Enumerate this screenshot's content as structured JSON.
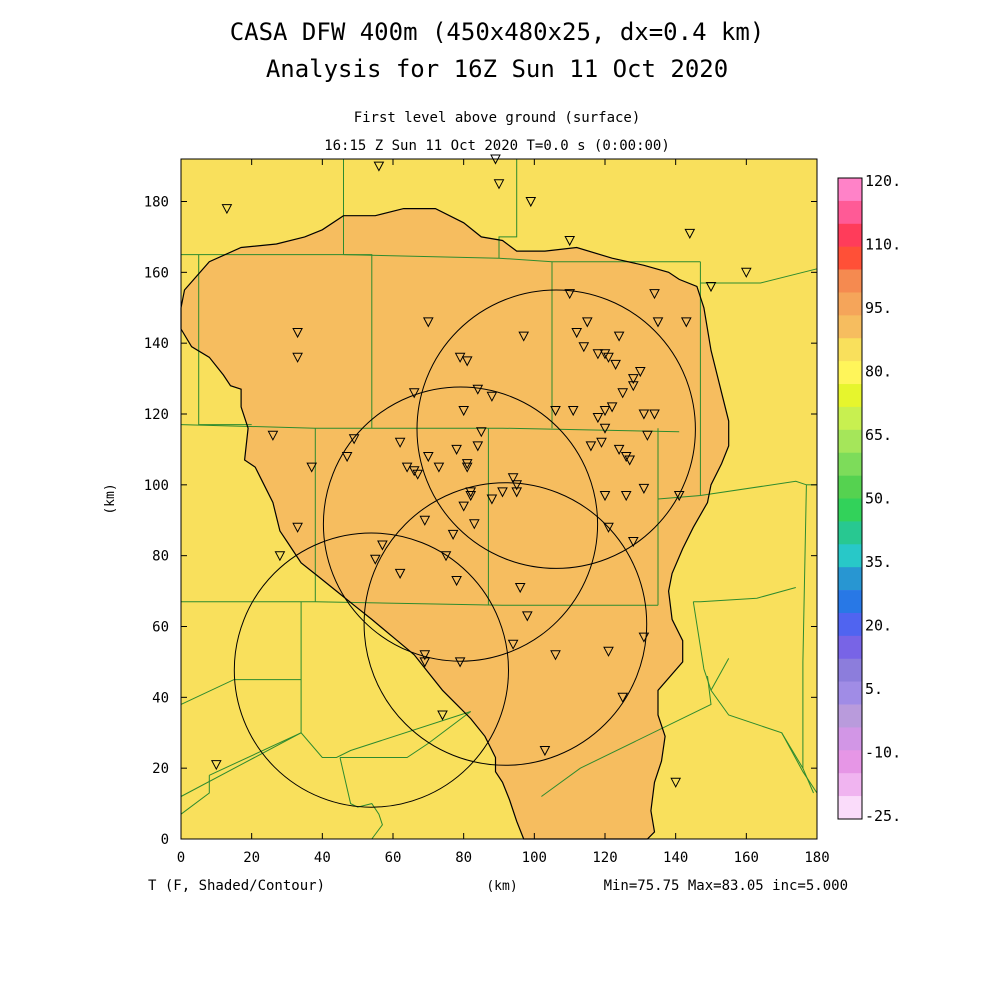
{
  "title": "CASA DFW 400m (450x480x25, dx=0.4 km)",
  "subtitle": "Analysis for 16Z Sun 11 Oct 2020",
  "level_label": "First level above ground (surface)",
  "time_label": "16:15 Z Sun 11 Oct 2020    T=0.0 s (0:00:00)",
  "field_label": "T (F, Shaded/Contour)",
  "stats_label": "Min=75.75 Max=83.05 inc=5.000",
  "colors": {
    "background_fill": "#f9e05c",
    "shaded_fill": "#f6bd5f",
    "county_lines": "#2e8b2e",
    "contour": "#000000"
  },
  "chart_data": {
    "type": "heatmap",
    "xlabel": "(km)",
    "ylabel": "(km)",
    "xlim": [
      0,
      180
    ],
    "ylim": [
      0,
      192
    ],
    "x_ticks": [
      "0",
      "20",
      "40",
      "60",
      "80",
      "100",
      "120",
      "140",
      "160",
      "180"
    ],
    "y_ticks": [
      "0",
      "20",
      "40",
      "60",
      "80",
      "100",
      "120",
      "140",
      "160",
      "180"
    ],
    "colorbar": {
      "labels": [
        "120.",
        "110.",
        "95.",
        "80.",
        "65.",
        "50.",
        "35.",
        "20.",
        "5.",
        "-10.",
        "-25."
      ],
      "colors": [
        "#ff82c8",
        "#ff5a96",
        "#ff3c5a",
        "#ff5037",
        "#f58a50",
        "#f5a55a",
        "#f6bd5f",
        "#f9e05c",
        "#fff55a",
        "#e6f52d",
        "#c8f050",
        "#a5e65a",
        "#7ddc5a",
        "#55d250",
        "#32d25a",
        "#28c891",
        "#28c8c8",
        "#2896d2",
        "#2878e6",
        "#5064f0",
        "#7864e6",
        "#8c7ddc",
        "#a08ce6",
        "#b99bdc",
        "#d296e6",
        "#e696e6",
        "#f0b4f0",
        "#fadcfa"
      ]
    },
    "contour_80F_outline_km": [
      [
        0,
        144
      ],
      [
        3,
        139
      ],
      [
        8,
        136
      ],
      [
        12,
        131
      ],
      [
        14,
        128
      ],
      [
        17,
        127
      ],
      [
        17,
        122
      ],
      [
        19,
        116
      ],
      [
        18,
        107
      ],
      [
        21,
        105
      ],
      [
        23,
        101
      ],
      [
        26,
        95
      ],
      [
        28,
        87
      ],
      [
        30,
        84
      ],
      [
        34,
        78
      ],
      [
        39,
        74
      ],
      [
        44,
        70
      ],
      [
        49,
        66
      ],
      [
        54,
        62
      ],
      [
        60,
        57
      ],
      [
        66,
        52
      ],
      [
        70,
        47
      ],
      [
        74,
        42
      ],
      [
        78,
        38
      ],
      [
        82,
        34
      ],
      [
        86,
        29
      ],
      [
        89,
        23
      ],
      [
        89,
        19
      ],
      [
        91,
        16
      ],
      [
        93,
        11
      ],
      [
        95,
        5
      ],
      [
        97,
        0
      ],
      [
        115,
        0
      ],
      [
        125,
        0
      ],
      [
        132,
        0
      ],
      [
        134,
        2
      ],
      [
        133,
        8
      ],
      [
        134,
        16
      ],
      [
        136,
        22
      ],
      [
        137,
        29
      ],
      [
        135,
        35
      ],
      [
        135,
        42
      ],
      [
        142,
        50
      ],
      [
        142,
        56
      ],
      [
        139,
        62
      ],
      [
        138,
        70
      ],
      [
        139,
        75
      ],
      [
        142,
        82
      ],
      [
        145,
        88
      ],
      [
        149,
        95
      ],
      [
        150,
        100
      ],
      [
        153,
        106
      ],
      [
        155,
        111
      ],
      [
        155,
        118
      ],
      [
        153,
        126
      ],
      [
        150,
        138
      ],
      [
        148,
        150
      ],
      [
        146,
        156
      ],
      [
        141,
        158
      ],
      [
        138,
        160
      ],
      [
        131,
        162
      ],
      [
        122,
        164
      ],
      [
        112,
        167
      ],
      [
        103,
        166
      ],
      [
        95,
        166
      ],
      [
        91,
        169
      ],
      [
        85,
        170
      ],
      [
        80,
        174
      ],
      [
        72,
        178
      ],
      [
        63,
        178
      ],
      [
        55,
        176
      ],
      [
        46,
        176
      ],
      [
        40,
        172
      ],
      [
        35,
        170
      ],
      [
        27,
        168
      ],
      [
        17,
        167
      ],
      [
        8,
        163
      ],
      [
        1,
        155
      ],
      [
        0,
        150
      ]
    ],
    "radar_rings_km": [
      {
        "cx": 106.2,
        "cy": 115.7,
        "r": 39.4
      },
      {
        "cx": 79.1,
        "cy": 88.9,
        "r": 38.8
      },
      {
        "cx": 91.8,
        "cy": 60.7,
        "r": 40.0
      },
      {
        "cx": 53.9,
        "cy": 47.7,
        "r": 38.8
      }
    ],
    "stations_km": [
      [
        13,
        178
      ],
      [
        56,
        190
      ],
      [
        89,
        192
      ],
      [
        90,
        185
      ],
      [
        99,
        180
      ],
      [
        110,
        169
      ],
      [
        144,
        171
      ],
      [
        160,
        160
      ],
      [
        150,
        156
      ],
      [
        134,
        154
      ],
      [
        110,
        154
      ],
      [
        115,
        146
      ],
      [
        135,
        146
      ],
      [
        143,
        146
      ],
      [
        70,
        146
      ],
      [
        33,
        143
      ],
      [
        112,
        143
      ],
      [
        97,
        142
      ],
      [
        124,
        142
      ],
      [
        33,
        136
      ],
      [
        79,
        136
      ],
      [
        81,
        135
      ],
      [
        118,
        137
      ],
      [
        121,
        136
      ],
      [
        123,
        134
      ],
      [
        114,
        139
      ],
      [
        120,
        137
      ],
      [
        128,
        130
      ],
      [
        130,
        132
      ],
      [
        84,
        127
      ],
      [
        66,
        126
      ],
      [
        88,
        125
      ],
      [
        125,
        126
      ],
      [
        128,
        128
      ],
      [
        80,
        121
      ],
      [
        106,
        121
      ],
      [
        111,
        121
      ],
      [
        120,
        121
      ],
      [
        122,
        122
      ],
      [
        131,
        120
      ],
      [
        134,
        120
      ],
      [
        118,
        119
      ],
      [
        120,
        116
      ],
      [
        132,
        114
      ],
      [
        85,
        115
      ],
      [
        26,
        114
      ],
      [
        49,
        113
      ],
      [
        62,
        112
      ],
      [
        78,
        110
      ],
      [
        84,
        111
      ],
      [
        119,
        112
      ],
      [
        116,
        111
      ],
      [
        124,
        110
      ],
      [
        126,
        108
      ],
      [
        127,
        107
      ],
      [
        70,
        108
      ],
      [
        47,
        108
      ],
      [
        37,
        105
      ],
      [
        64,
        105
      ],
      [
        66,
        104
      ],
      [
        67,
        103
      ],
      [
        73,
        105
      ],
      [
        81,
        105
      ],
      [
        81,
        106
      ],
      [
        94,
        102
      ],
      [
        95,
        100
      ],
      [
        95,
        98
      ],
      [
        120,
        97
      ],
      [
        126,
        97
      ],
      [
        131,
        99
      ],
      [
        141,
        97
      ],
      [
        82,
        97
      ],
      [
        82,
        98
      ],
      [
        91,
        98
      ],
      [
        88,
        96
      ],
      [
        80,
        94
      ],
      [
        33,
        88
      ],
      [
        69,
        90
      ],
      [
        83,
        89
      ],
      [
        121,
        88
      ],
      [
        128,
        84
      ],
      [
        77,
        86
      ],
      [
        57,
        83
      ],
      [
        75,
        80
      ],
      [
        55,
        79
      ],
      [
        28,
        80
      ],
      [
        62,
        75
      ],
      [
        78,
        73
      ],
      [
        96,
        71
      ],
      [
        98,
        63
      ],
      [
        131,
        57
      ],
      [
        94,
        55
      ],
      [
        69,
        52
      ],
      [
        69,
        50
      ],
      [
        79,
        50
      ],
      [
        106,
        52
      ],
      [
        121,
        53
      ],
      [
        125,
        40
      ],
      [
        74,
        35
      ],
      [
        103,
        25
      ],
      [
        10,
        21
      ],
      [
        140,
        16
      ]
    ],
    "county_boundaries_km": [
      [
        [
          0,
          165
        ],
        [
          46,
          165
        ],
        [
          90,
          164
        ],
        [
          105,
          163
        ],
        [
          147,
          163
        ]
      ],
      [
        [
          5,
          165
        ],
        [
          5,
          117
        ],
        [
          20,
          117
        ]
      ],
      [
        [
          0,
          117
        ],
        [
          38,
          116
        ],
        [
          91,
          116
        ],
        [
          141,
          115
        ]
      ],
      [
        [
          46,
          165
        ],
        [
          54,
          165
        ],
        [
          54,
          127
        ],
        [
          54,
          116
        ]
      ],
      [
        [
          105,
          163
        ],
        [
          105,
          116
        ]
      ],
      [
        [
          147,
          163
        ],
        [
          147,
          157
        ],
        [
          164,
          157
        ],
        [
          180,
          161
        ]
      ],
      [
        [
          147,
          157
        ],
        [
          147,
          116
        ],
        [
          147,
          97
        ],
        [
          135,
          96
        ]
      ],
      [
        [
          90,
          164
        ],
        [
          90,
          170
        ],
        [
          95,
          170
        ],
        [
          95,
          192
        ]
      ],
      [
        [
          46,
          192
        ],
        [
          46,
          165
        ]
      ],
      [
        [
          0,
          67
        ],
        [
          38,
          67
        ],
        [
          91,
          66
        ],
        [
          135,
          66
        ]
      ],
      [
        [
          38,
          116
        ],
        [
          38,
          67
        ]
      ],
      [
        [
          87,
          116
        ],
        [
          87,
          66
        ]
      ],
      [
        [
          135,
          116
        ],
        [
          135,
          66
        ]
      ],
      [
        [
          34,
          67
        ],
        [
          34,
          30
        ],
        [
          8,
          18
        ]
      ],
      [
        [
          0,
          38
        ],
        [
          15,
          45
        ],
        [
          34,
          45
        ]
      ],
      [
        [
          0,
          12
        ],
        [
          34,
          30
        ],
        [
          40,
          23
        ],
        [
          44,
          23
        ],
        [
          48,
          25
        ],
        [
          82,
          36
        ]
      ],
      [
        [
          8,
          18
        ],
        [
          8,
          13
        ],
        [
          0,
          7
        ]
      ],
      [
        [
          45,
          23
        ],
        [
          48,
          10
        ],
        [
          50,
          9
        ],
        [
          54,
          10
        ],
        [
          56,
          7
        ],
        [
          57,
          4
        ],
        [
          54,
          0
        ]
      ],
      [
        [
          82,
          36
        ],
        [
          70,
          27
        ],
        [
          64,
          23
        ],
        [
          45,
          23
        ]
      ],
      [
        [
          145,
          67
        ],
        [
          147,
          67
        ],
        [
          163,
          68
        ],
        [
          174,
          71
        ]
      ],
      [
        [
          145,
          67
        ],
        [
          148,
          48
        ],
        [
          150,
          42
        ],
        [
          155,
          35
        ],
        [
          170,
          30
        ],
        [
          176,
          19
        ],
        [
          180,
          13
        ]
      ],
      [
        [
          102,
          12
        ],
        [
          113,
          20
        ],
        [
          150,
          38
        ],
        [
          149,
          46
        ]
      ],
      [
        [
          150,
          42
        ],
        [
          155,
          51
        ]
      ],
      [
        [
          177,
          100
        ],
        [
          180,
          100
        ]
      ],
      [
        [
          147,
          97
        ],
        [
          174,
          101
        ],
        [
          177,
          100
        ],
        [
          176,
          50
        ],
        [
          176,
          20
        ]
      ],
      [
        [
          170,
          30
        ],
        [
          176,
          20
        ],
        [
          179,
          13
        ]
      ]
    ]
  }
}
